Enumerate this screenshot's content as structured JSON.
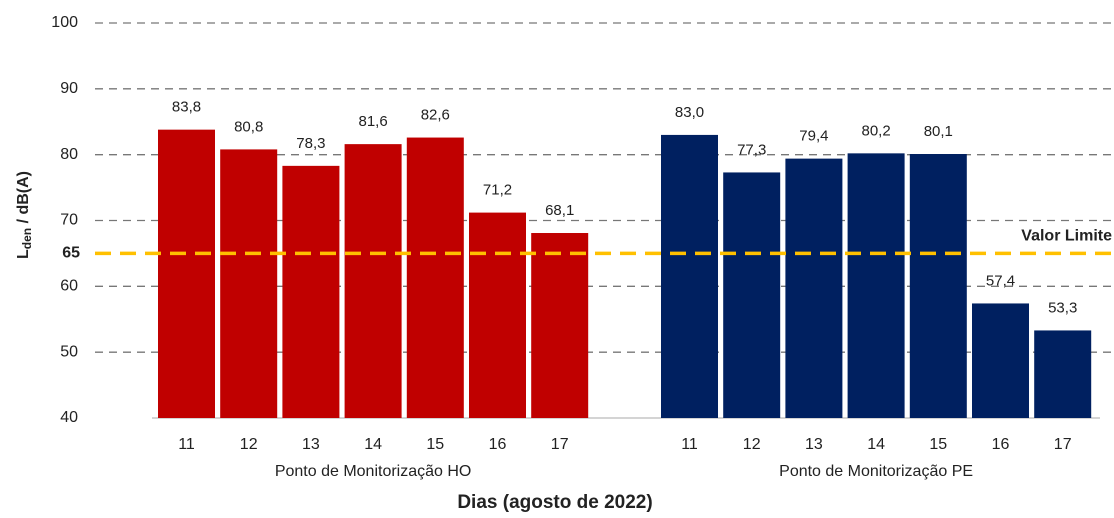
{
  "chart_data": {
    "type": "bar",
    "ylabel": {
      "main": "L",
      "sub": "den",
      "rest": " / dB(A)"
    },
    "xlabel": "Dias  (agosto de 2022)",
    "ylim": [
      40,
      100
    ],
    "yticks": [
      40,
      50,
      60,
      70,
      80,
      90,
      100
    ],
    "grid": true,
    "series": [
      {
        "name": "Ponto de Monitorização HO",
        "color": "#c00000",
        "categories": [
          "11",
          "12",
          "13",
          "14",
          "15",
          "16",
          "17"
        ],
        "values": [
          83.8,
          80.8,
          78.3,
          81.6,
          82.6,
          71.2,
          68.1
        ],
        "value_labels": [
          "83,8",
          "80,8",
          "78,3",
          "81,6",
          "82,6",
          "71,2",
          "68,1"
        ]
      },
      {
        "name": "Ponto de Monitorização PE",
        "color": "#002060",
        "categories": [
          "11",
          "12",
          "13",
          "14",
          "15",
          "16",
          "17"
        ],
        "values": [
          83.0,
          77.3,
          79.4,
          80.2,
          80.1,
          57.4,
          53.3
        ],
        "value_labels": [
          "83,0",
          "77,3",
          "79,4",
          "80,2",
          "80,1",
          "57,4",
          "53,3"
        ]
      }
    ],
    "reference_line": {
      "value": 65,
      "label": "65",
      "text": "Valor Limite",
      "color": "#ffc000"
    }
  }
}
